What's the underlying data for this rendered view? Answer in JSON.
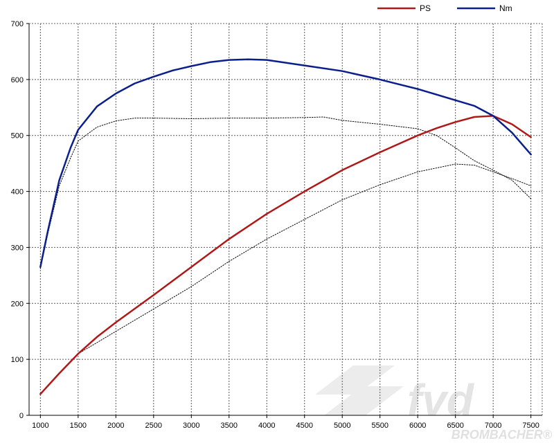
{
  "chart_data": {
    "type": "line",
    "title": "",
    "xlabel": "",
    "ylabel": "",
    "xlim": [
      850,
      7650
    ],
    "ylim": [
      0,
      700
    ],
    "x_ticks": [
      1000,
      1500,
      2000,
      2500,
      3000,
      3500,
      4000,
      4500,
      5000,
      5500,
      6000,
      6500,
      7000,
      7500
    ],
    "y_ticks": [
      0,
      100,
      200,
      300,
      400,
      500,
      600,
      700
    ],
    "grid": true,
    "legend_position": "top-right",
    "series": [
      {
        "name": "PS",
        "color": "#b01818",
        "style": "solid",
        "points": [
          [
            1000,
            38
          ],
          [
            1250,
            75
          ],
          [
            1500,
            110
          ],
          [
            1750,
            140
          ],
          [
            2000,
            166
          ],
          [
            2500,
            215
          ],
          [
            3000,
            265
          ],
          [
            3500,
            315
          ],
          [
            4000,
            360
          ],
          [
            4500,
            400
          ],
          [
            5000,
            438
          ],
          [
            5500,
            470
          ],
          [
            6000,
            500
          ],
          [
            6250,
            513
          ],
          [
            6500,
            524
          ],
          [
            6750,
            533
          ],
          [
            7000,
            535
          ],
          [
            7250,
            520
          ],
          [
            7500,
            497
          ]
        ]
      },
      {
        "name": "Nm",
        "color": "#0a1e8c",
        "style": "solid",
        "points": [
          [
            1000,
            265
          ],
          [
            1100,
            330
          ],
          [
            1250,
            420
          ],
          [
            1400,
            478
          ],
          [
            1500,
            510
          ],
          [
            1750,
            552
          ],
          [
            2000,
            575
          ],
          [
            2250,
            593
          ],
          [
            2500,
            605
          ],
          [
            2750,
            616
          ],
          [
            3000,
            624
          ],
          [
            3250,
            631
          ],
          [
            3500,
            635
          ],
          [
            3750,
            636
          ],
          [
            4000,
            635
          ],
          [
            4500,
            625
          ],
          [
            5000,
            615
          ],
          [
            5500,
            600
          ],
          [
            6000,
            583
          ],
          [
            6500,
            563
          ],
          [
            6750,
            553
          ],
          [
            7000,
            535
          ],
          [
            7250,
            505
          ],
          [
            7500,
            466
          ]
        ]
      },
      {
        "color": "#000000",
        "style": "dotted",
        "points": [
          [
            1000,
            262
          ],
          [
            1100,
            325
          ],
          [
            1250,
            410
          ],
          [
            1400,
            460
          ],
          [
            1500,
            490
          ],
          [
            1750,
            515
          ],
          [
            2000,
            526
          ],
          [
            2250,
            531
          ],
          [
            2500,
            531
          ],
          [
            3000,
            530
          ],
          [
            3500,
            531
          ],
          [
            4000,
            531
          ],
          [
            4500,
            532
          ],
          [
            4750,
            533
          ],
          [
            5000,
            527
          ],
          [
            5500,
            520
          ],
          [
            6000,
            512
          ],
          [
            6250,
            500
          ],
          [
            6500,
            478
          ],
          [
            6750,
            455
          ],
          [
            7000,
            438
          ],
          [
            7250,
            420
          ],
          [
            7500,
            387
          ]
        ]
      },
      {
        "color": "#000000",
        "style": "dotted",
        "points": [
          [
            1500,
            110
          ],
          [
            1750,
            130
          ],
          [
            2000,
            150
          ],
          [
            2500,
            190
          ],
          [
            3000,
            230
          ],
          [
            3500,
            275
          ],
          [
            4000,
            315
          ],
          [
            4500,
            350
          ],
          [
            5000,
            385
          ],
          [
            5500,
            412
          ],
          [
            6000,
            435
          ],
          [
            6500,
            449
          ],
          [
            6750,
            447
          ],
          [
            7000,
            435
          ],
          [
            7250,
            423
          ],
          [
            7500,
            410
          ]
        ]
      }
    ]
  },
  "watermark": {
    "logo": "fvd",
    "text": "BROMBACHER®"
  }
}
